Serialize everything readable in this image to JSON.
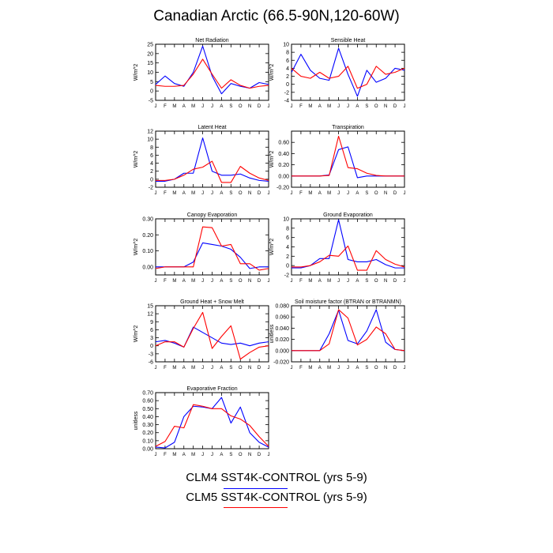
{
  "title": "Canadian Arctic (66.5-90N,120-60W)",
  "legend": [
    {
      "label": "CLM4 SST4K-CONTROL (yrs 5-9)",
      "color": "#0000ff"
    },
    {
      "label": "CLM5 SST4K-CONTROL (yrs 5-9)",
      "color": "#ff0000"
    }
  ],
  "months": [
    "J",
    "F",
    "M",
    "A",
    "M",
    "J",
    "J",
    "A",
    "S",
    "O",
    "N",
    "D",
    "J"
  ],
  "chart_data": [
    {
      "type": "line",
      "title": "Net Radiation",
      "ylabel": "W/m^2",
      "ylim": [
        -5,
        25
      ],
      "yticks": [
        -5,
        0,
        5,
        10,
        15,
        20,
        25
      ],
      "yticklabels": [
        "-5",
        "0",
        "5",
        "10",
        "15",
        "20",
        "25"
      ],
      "series": [
        {
          "name": "CLM4",
          "color": "#0000ff",
          "values": [
            3.5,
            8,
            4,
            2.5,
            10,
            24,
            8,
            -1.5,
            4,
            2.5,
            1.5,
            4.5,
            3.5
          ]
        },
        {
          "name": "CLM5",
          "color": "#ff0000",
          "values": [
            3,
            2.5,
            2.5,
            3,
            9,
            17,
            9,
            1.5,
            6,
            3,
            1.5,
            2.5,
            3
          ]
        }
      ]
    },
    {
      "type": "line",
      "title": "Sensible Heat",
      "ylabel": "W/m^2",
      "ylim": [
        -4,
        10
      ],
      "yticks": [
        -4,
        -2,
        0,
        2,
        4,
        6,
        8,
        10
      ],
      "yticklabels": [
        "-4",
        "-2",
        "0",
        "2",
        "4",
        "6",
        "8",
        "10"
      ],
      "series": [
        {
          "name": "CLM4",
          "color": "#0000ff",
          "values": [
            3,
            7.5,
            3.5,
            1.5,
            1,
            9,
            2.5,
            -3,
            3.5,
            0.5,
            1.5,
            4,
            3.5
          ]
        },
        {
          "name": "CLM5",
          "color": "#ff0000",
          "values": [
            4,
            2,
            1.5,
            3,
            1.5,
            2,
            4.5,
            -1,
            0,
            4.5,
            2.5,
            3,
            4
          ]
        }
      ]
    },
    {
      "type": "line",
      "title": "Latent Heat",
      "ylabel": "W/m^2",
      "ylim": [
        -2,
        12
      ],
      "yticks": [
        -2,
        0,
        2,
        4,
        6,
        8,
        10,
        12
      ],
      "yticklabels": [
        "-2",
        "0",
        "2",
        "4",
        "6",
        "8",
        "10",
        "12"
      ],
      "series": [
        {
          "name": "CLM4",
          "color": "#0000ff",
          "values": [
            -0.5,
            -0.5,
            0,
            1.5,
            1.5,
            10.3,
            2,
            1,
            1,
            1.3,
            0.3,
            -0.3,
            -0.5
          ]
        },
        {
          "name": "CLM5",
          "color": "#ff0000",
          "values": [
            -0.3,
            -0.3,
            0,
            1,
            2.5,
            3,
            4.5,
            -0.8,
            -0.8,
            3.2,
            1.5,
            0.3,
            -0.3
          ]
        }
      ]
    },
    {
      "type": "line",
      "title": "Transpiration",
      "ylabel": "W/m^2",
      "ylim": [
        -0.2,
        0.8
      ],
      "yticks": [
        -0.2,
        0,
        0.2,
        0.4,
        0.6
      ],
      "yticklabels": [
        "-0.20",
        "0.00",
        "0.20",
        "0.40",
        "0.60"
      ],
      "series": [
        {
          "name": "CLM4",
          "color": "#0000ff",
          "values": [
            0,
            0,
            0,
            0,
            0.02,
            0.47,
            0.52,
            -0.03,
            0,
            0,
            0,
            0,
            0
          ]
        },
        {
          "name": "CLM5",
          "color": "#ff0000",
          "values": [
            0,
            0,
            0,
            0,
            0.01,
            0.71,
            0.15,
            0.13,
            0.05,
            0.01,
            0,
            0,
            0
          ]
        }
      ]
    },
    {
      "type": "line",
      "title": "Canopy Evaporation",
      "ylabel": "W/m^2",
      "ylim": [
        -0.05,
        0.3
      ],
      "yticks": [
        0,
        0.1,
        0.2,
        0.3
      ],
      "yticklabels": [
        "0.00",
        "0.10",
        "0.20",
        "0.30"
      ],
      "series": [
        {
          "name": "CLM4",
          "color": "#0000ff",
          "values": [
            0,
            0,
            0,
            0,
            0.03,
            0.15,
            0.14,
            0.13,
            0.11,
            0.06,
            -0.01,
            0,
            0
          ]
        },
        {
          "name": "CLM5",
          "color": "#ff0000",
          "values": [
            -0.01,
            0,
            0,
            0,
            0,
            0.25,
            0.245,
            0.13,
            0.14,
            0.02,
            0.02,
            -0.02,
            -0.01
          ]
        }
      ]
    },
    {
      "type": "line",
      "title": "Ground Evaporation",
      "ylabel": "W/m^2",
      "ylim": [
        -2,
        10
      ],
      "yticks": [
        -2,
        0,
        2,
        4,
        6,
        8,
        10
      ],
      "yticklabels": [
        "-2",
        "0",
        "2",
        "4",
        "6",
        "8",
        "10"
      ],
      "series": [
        {
          "name": "CLM4",
          "color": "#0000ff",
          "values": [
            -0.5,
            -0.5,
            0,
            1.5,
            1.5,
            9.8,
            1.3,
            0.8,
            0.8,
            1.3,
            0.2,
            -0.5,
            -0.5
          ]
        },
        {
          "name": "CLM5",
          "color": "#ff0000",
          "values": [
            -0.3,
            -0.3,
            0,
            0.8,
            2.2,
            2,
            4.2,
            -1,
            -1,
            3.2,
            1.3,
            0.3,
            -0.3
          ]
        }
      ]
    },
    {
      "type": "line",
      "title": "Ground Heat + Snow Melt",
      "ylabel": "W/m^2",
      "ylim": [
        -6,
        15
      ],
      "yticks": [
        -6,
        -3,
        0,
        3,
        6,
        9,
        12,
        15
      ],
      "yticklabels": [
        "-6",
        "-3",
        "0",
        "3",
        "6",
        "9",
        "12",
        "15"
      ],
      "series": [
        {
          "name": "CLM4",
          "color": "#0000ff",
          "values": [
            1.5,
            2,
            1,
            -0.5,
            7,
            5,
            3,
            1,
            0.5,
            1,
            0,
            1,
            1.5
          ]
        },
        {
          "name": "CLM5",
          "color": "#ff0000",
          "values": [
            0,
            1.5,
            1.5,
            -0.5,
            6.5,
            12.5,
            -1,
            3.5,
            7.5,
            -5,
            -2.5,
            -0.5,
            0
          ]
        }
      ]
    },
    {
      "type": "line",
      "title": "Soil moisture factor (BTRAN or BTRANMN)",
      "ylabel": "unitless",
      "ylim": [
        -0.02,
        0.08
      ],
      "yticks": [
        -0.02,
        0,
        0.02,
        0.04,
        0.06,
        0.08
      ],
      "yticklabels": [
        "-0.020",
        "0.000",
        "0.020",
        "0.040",
        "0.060",
        "0.080"
      ],
      "series": [
        {
          "name": "CLM4",
          "color": "#0000ff",
          "values": [
            0,
            0,
            0,
            0,
            0.03,
            0.072,
            0.018,
            0.012,
            0.035,
            0.073,
            0.015,
            0.002,
            0
          ]
        },
        {
          "name": "CLM5",
          "color": "#ff0000",
          "values": [
            0,
            0,
            0,
            0,
            0.012,
            0.073,
            0.058,
            0.01,
            0.02,
            0.042,
            0.03,
            0.002,
            0
          ]
        }
      ]
    },
    {
      "type": "line",
      "title": "Evaporative Fraction",
      "ylabel": "unitless",
      "ylim": [
        0,
        0.7
      ],
      "yticks": [
        0,
        0.1,
        0.2,
        0.3,
        0.4,
        0.5,
        0.6,
        0.7
      ],
      "yticklabels": [
        "0.00",
        "0.10",
        "0.20",
        "0.30",
        "0.40",
        "0.50",
        "0.60",
        "0.70"
      ],
      "series": [
        {
          "name": "CLM4",
          "color": "#0000ff",
          "values": [
            0.02,
            0.01,
            0.08,
            0.4,
            0.53,
            0.52,
            0.5,
            0.64,
            0.32,
            0.52,
            0.2,
            0.08,
            0.02
          ]
        },
        {
          "name": "CLM5",
          "color": "#ff0000",
          "values": [
            0.03,
            0.09,
            0.28,
            0.26,
            0.55,
            0.53,
            0.5,
            0.5,
            0.41,
            0.37,
            0.29,
            0.15,
            0.03
          ]
        }
      ]
    }
  ]
}
